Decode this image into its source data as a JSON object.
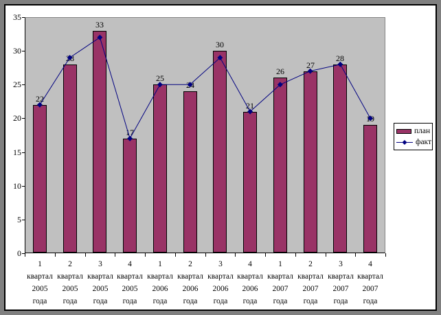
{
  "chart_data": {
    "type": "bar",
    "combo": "bar+line",
    "title": "",
    "xlabel": "",
    "ylabel": "",
    "ylim": [
      0,
      35
    ],
    "yticks": [
      0,
      5,
      10,
      15,
      20,
      25,
      30,
      35
    ],
    "grid": false,
    "plot_bg_color": "#C0C0C0",
    "frame_color": "#808080",
    "canvas_color": "#FFFFFF",
    "categories": [
      "1 квартал 2005 года",
      "2 квартал 2005 года",
      "3 квартал 2005 года",
      "4 квартал 2005 года",
      "1 квартал 2006 года",
      "2 квартал 2006 года",
      "3 квартал 2006 года",
      "4 квартал 2006 года",
      "1 квартал 2007 года",
      "2 квартал 2007 года",
      "3 квартал 2007 года",
      "4 квартал 2007 года"
    ],
    "series": [
      {
        "name": "план",
        "type": "bar",
        "color": "#993366",
        "values": [
          22,
          28,
          33,
          17,
          25,
          24,
          30,
          21,
          26,
          27,
          28,
          19
        ],
        "data_labels_visible": true
      },
      {
        "name": "факт",
        "type": "line",
        "color": "#000080",
        "marker": "diamond",
        "values": [
          22,
          29,
          32,
          17,
          25,
          25,
          29,
          21,
          25,
          27,
          28,
          20
        ],
        "data_labels_visible": false
      }
    ],
    "legend": {
      "position": "right",
      "items": [
        "план",
        "факт"
      ]
    }
  }
}
